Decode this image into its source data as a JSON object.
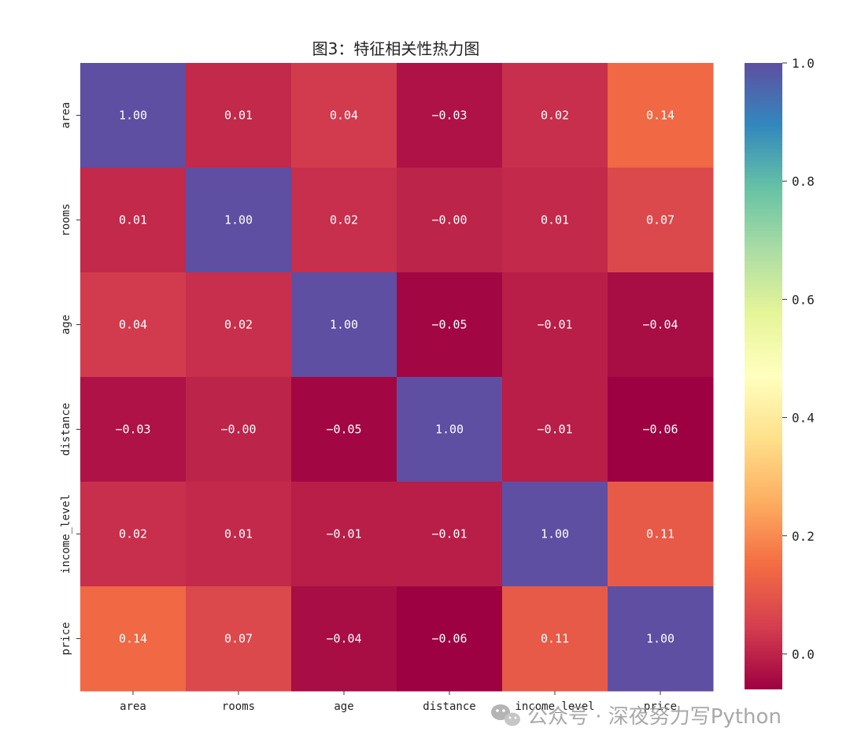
{
  "chart_data": {
    "type": "heatmap",
    "title": "图3：特征相关性热力图",
    "x_labels": [
      "area",
      "rooms",
      "age",
      "distance",
      "income_level",
      "price"
    ],
    "y_labels": [
      "area",
      "rooms",
      "age",
      "distance",
      "income_level",
      "price"
    ],
    "values": [
      [
        1.0,
        0.01,
        0.04,
        -0.03,
        0.02,
        0.14
      ],
      [
        0.01,
        1.0,
        0.02,
        -0.0,
        0.01,
        0.07
      ],
      [
        0.04,
        0.02,
        1.0,
        -0.05,
        -0.01,
        -0.04
      ],
      [
        -0.03,
        -0.0,
        -0.05,
        1.0,
        -0.01,
        -0.06
      ],
      [
        0.02,
        0.01,
        -0.01,
        -0.01,
        1.0,
        0.11
      ],
      [
        0.14,
        0.07,
        -0.04,
        -0.06,
        0.11,
        1.0
      ]
    ],
    "cell_labels": [
      [
        "1.00",
        "0.01",
        "0.04",
        "−0.03",
        "0.02",
        "0.14"
      ],
      [
        "0.01",
        "1.00",
        "0.02",
        "−0.00",
        "0.01",
        "0.07"
      ],
      [
        "0.04",
        "0.02",
        "1.00",
        "−0.05",
        "−0.01",
        "−0.04"
      ],
      [
        "−0.03",
        "−0.00",
        "−0.05",
        "1.00",
        "−0.01",
        "−0.06"
      ],
      [
        "0.02",
        "0.01",
        "−0.01",
        "−0.01",
        "1.00",
        "0.11"
      ],
      [
        "0.14",
        "0.07",
        "−0.04",
        "−0.06",
        "0.11",
        "1.00"
      ]
    ],
    "colormap": "Spectral",
    "color_range": [
      -0.06,
      1.0
    ],
    "colorbar_ticks": [
      {
        "value": 0.0,
        "label": "0.0"
      },
      {
        "value": 0.2,
        "label": "0.2"
      },
      {
        "value": 0.4,
        "label": "0.4"
      },
      {
        "value": 0.6,
        "label": "0.6"
      },
      {
        "value": 0.8,
        "label": "0.8"
      },
      {
        "value": 1.0,
        "label": "1.0"
      }
    ]
  },
  "watermark": "公众号 · 深夜努力写Python"
}
